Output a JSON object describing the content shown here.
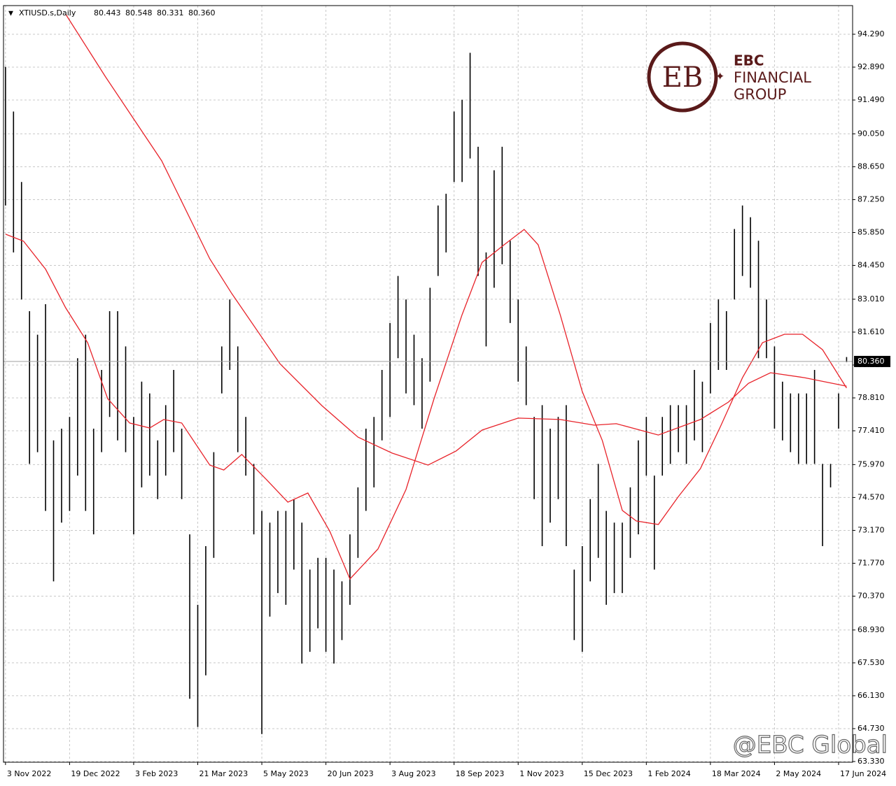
{
  "chart_data": {
    "type": "ohlc",
    "symbol": "XTIUSD.s,Daily",
    "ohlc_header": [
      "80.443",
      "80.548",
      "80.331",
      "80.360"
    ],
    "last_price": {
      "value": 80.36,
      "label": "80.360"
    },
    "color": "#000000",
    "grid": true,
    "xlim": [
      -1,
      423
    ],
    "ylim": [
      63.3,
      95.51
    ],
    "yticks": [
      {
        "value": 94.29,
        "label": "94.290"
      },
      {
        "value": 92.89,
        "label": "92.890"
      },
      {
        "value": 91.49,
        "label": "91.490"
      },
      {
        "value": 90.05,
        "label": "90.050"
      },
      {
        "value": 88.65,
        "label": "88.650"
      },
      {
        "value": 87.25,
        "label": "87.250"
      },
      {
        "value": 85.85,
        "label": "85.850"
      },
      {
        "value": 84.45,
        "label": "84.450"
      },
      {
        "value": 83.01,
        "label": "83.010"
      },
      {
        "value": 81.61,
        "label": "81.610"
      },
      {
        "value": 80.21,
        "label": "80.210"
      },
      {
        "value": 78.81,
        "label": "78.810"
      },
      {
        "value": 77.41,
        "label": "77.410"
      },
      {
        "value": 75.97,
        "label": "75.970"
      },
      {
        "value": 74.57,
        "label": "74.570"
      },
      {
        "value": 73.17,
        "label": "73.170"
      },
      {
        "value": 71.77,
        "label": "71.770"
      },
      {
        "value": 70.37,
        "label": "70.370"
      },
      {
        "value": 68.93,
        "label": "68.930"
      },
      {
        "value": 67.53,
        "label": "67.530"
      },
      {
        "value": 66.13,
        "label": "66.130"
      },
      {
        "value": 64.73,
        "label": "64.730"
      },
      {
        "value": 63.33,
        "label": "63.330"
      }
    ],
    "xticks": [
      {
        "value": 0,
        "label": "3 Nov 2022"
      },
      {
        "value": 32,
        "label": "19 Dec 2022"
      },
      {
        "value": 64,
        "label": "3 Feb 2023"
      },
      {
        "value": 96,
        "label": "21 Mar 2023"
      },
      {
        "value": 128,
        "label": "5 May 2023"
      },
      {
        "value": 160,
        "label": "20 Jun 2023"
      },
      {
        "value": 192,
        "label": "3 Aug 2023"
      },
      {
        "value": 224,
        "label": "18 Sep 2023"
      },
      {
        "value": 256,
        "label": "1 Nov 2023"
      },
      {
        "value": 288,
        "label": "15 Dec 2023"
      },
      {
        "value": 320,
        "label": "1 Feb 2024"
      },
      {
        "value": 352,
        "label": "18 Mar 2024"
      },
      {
        "value": 384,
        "label": "2 May 2024"
      },
      {
        "value": 416,
        "label": "17 Jun 2024"
      }
    ],
    "x": [
      0,
      4,
      8,
      12,
      16,
      20,
      24,
      28,
      32,
      36,
      40,
      44,
      48,
      52,
      56,
      60,
      64,
      68,
      72,
      76,
      80,
      84,
      88,
      92,
      96,
      100,
      104,
      108,
      112,
      116,
      120,
      124,
      128,
      132,
      136,
      140,
      144,
      148,
      152,
      156,
      160,
      164,
      168,
      172,
      176,
      180,
      184,
      188,
      192,
      196,
      200,
      204,
      208,
      212,
      216,
      220,
      224,
      228,
      232,
      236,
      240,
      244,
      248,
      252,
      256,
      260,
      264,
      268,
      272,
      276,
      280,
      284,
      288,
      292,
      296,
      300,
      304,
      308,
      312,
      316,
      320,
      324,
      328,
      332,
      336,
      340,
      344,
      348,
      352,
      356,
      360,
      364,
      368,
      372,
      376,
      380,
      384,
      388,
      392,
      396,
      400,
      404,
      408,
      412,
      416,
      420
    ],
    "high": [
      92.9,
      91.0,
      88.0,
      82.5,
      81.5,
      82.8,
      77.0,
      77.5,
      78.0,
      80.5,
      81.5,
      77.5,
      80.0,
      82.5,
      82.5,
      81.0,
      78.0,
      79.5,
      79.0,
      77.0,
      78.5,
      80.0,
      77.5,
      73.0,
      70.0,
      72.5,
      76.5,
      81.0,
      83.0,
      81.0,
      78.0,
      76.0,
      74.0,
      73.5,
      74.0,
      74.0,
      74.5,
      73.5,
      71.5,
      72.0,
      72.0,
      71.5,
      71.0,
      73.0,
      75.0,
      77.5,
      78.0,
      80.0,
      82.0,
      84.0,
      83.0,
      81.5,
      80.5,
      83.5,
      87.0,
      87.5,
      91.0,
      91.5,
      93.5,
      89.5,
      85.0,
      88.5,
      89.5,
      85.5,
      83.0,
      81.0,
      78.0,
      78.5,
      77.5,
      78.0,
      78.5,
      71.5,
      72.5,
      74.5,
      76.0,
      74.0,
      73.5,
      73.5,
      75.0,
      77.0,
      78.0,
      75.5,
      78.0,
      78.5,
      78.5,
      78.5,
      80.0,
      79.5,
      82.0,
      83.0,
      82.5,
      86.0,
      87.0,
      86.5,
      85.5,
      83.0,
      81.0,
      79.5,
      79.0,
      79.0,
      79.0,
      80.0,
      76.0,
      76.0,
      79.0,
      80.548
    ],
    "low": [
      87.0,
      85.0,
      83.0,
      76.0,
      76.5,
      74.0,
      71.0,
      73.5,
      74.0,
      75.5,
      74.0,
      73.0,
      76.5,
      78.0,
      77.0,
      76.5,
      73.0,
      75.0,
      75.5,
      74.5,
      75.5,
      76.5,
      74.5,
      66.0,
      64.8,
      67.0,
      72.0,
      79.0,
      80.0,
      76.5,
      75.5,
      73.0,
      64.5,
      69.5,
      70.5,
      70.0,
      71.5,
      67.5,
      68.0,
      69.0,
      68.0,
      67.5,
      68.5,
      70.0,
      72.0,
      74.0,
      75.0,
      77.0,
      78.0,
      80.5,
      79.0,
      78.5,
      77.5,
      79.5,
      84.0,
      85.0,
      88.0,
      88.0,
      89.0,
      84.0,
      81.0,
      83.5,
      84.5,
      82.0,
      79.5,
      78.5,
      74.5,
      72.5,
      73.5,
      74.5,
      72.5,
      68.5,
      68.0,
      71.0,
      72.0,
      70.0,
      70.5,
      70.5,
      72.0,
      73.0,
      75.5,
      71.5,
      75.5,
      76.0,
      76.5,
      76.0,
      77.0,
      76.5,
      79.0,
      80.0,
      80.0,
      83.0,
      84.0,
      83.5,
      80.5,
      80.5,
      77.5,
      77.0,
      76.5,
      76.0,
      76.0,
      76.0,
      72.5,
      75.0,
      77.5,
      80.331
    ],
    "lines": [
      {
        "color": "#e8232a",
        "x": [
          30,
          50,
          78,
          102,
          113,
          137,
          158,
          176,
          193,
          211,
          225,
          238,
          256,
          277,
          294,
          305,
          326,
          347,
          361,
          371,
          382,
          399,
          420
        ],
        "values": [
          95.15,
          92.47,
          88.9,
          84.73,
          83.25,
          80.27,
          78.48,
          77.14,
          76.46,
          75.95,
          76.55,
          77.44,
          77.95,
          77.89,
          77.65,
          77.71,
          77.23,
          77.89,
          78.63,
          79.43,
          79.88,
          79.67,
          79.31
        ]
      },
      {
        "color": "#e8232a",
        "x": [
          0,
          9,
          20,
          30,
          41,
          51,
          62,
          72,
          79,
          88,
          102,
          109,
          118,
          130,
          141,
          151,
          162,
          172,
          186,
          200,
          214,
          228,
          238,
          249,
          259,
          266,
          277,
          288,
          298,
          308,
          315,
          326,
          336,
          347,
          357,
          368,
          378,
          389,
          398,
          408,
          420
        ],
        "values": [
          85.78,
          85.48,
          84.29,
          82.65,
          81.16,
          78.78,
          77.74,
          77.53,
          77.89,
          77.74,
          75.95,
          75.74,
          76.4,
          75.36,
          74.37,
          74.76,
          73.12,
          71.1,
          72.38,
          74.91,
          78.78,
          82.35,
          84.58,
          85.33,
          85.98,
          85.33,
          82.35,
          79.08,
          77,
          74.02,
          73.57,
          73.42,
          74.61,
          75.8,
          77.59,
          79.67,
          81.16,
          81.52,
          81.52,
          80.86,
          79.23
        ]
      }
    ]
  },
  "logo": {
    "line1": "EBC",
    "line2": "FINANCIAL",
    "line3": "GROUP"
  },
  "watermark": "@EBC Global"
}
